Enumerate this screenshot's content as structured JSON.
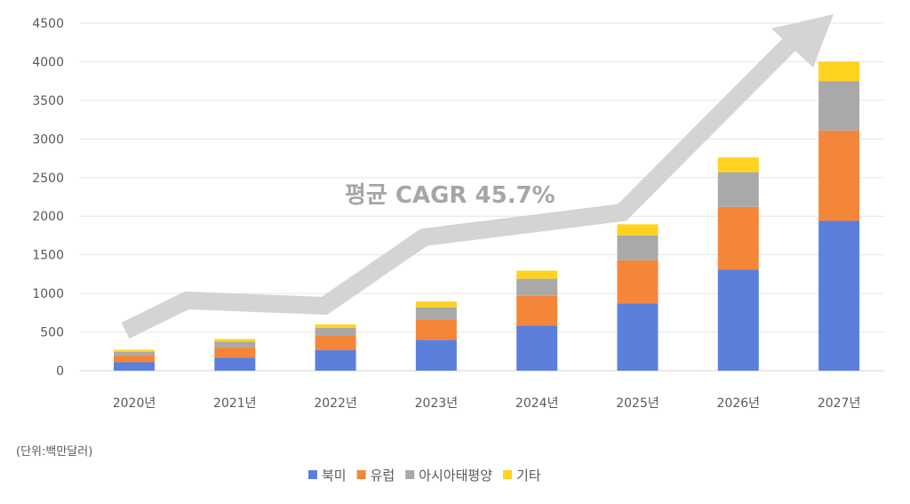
{
  "chart_data": {
    "type": "bar",
    "stacked": true,
    "categories": [
      "2020년",
      "2021년",
      "2022년",
      "2023년",
      "2024년",
      "2025년",
      "2026년",
      "2027년"
    ],
    "series": [
      {
        "name": "북미",
        "color": "#5b7fdb",
        "values": [
          110,
          170,
          265,
          400,
          585,
          870,
          1310,
          1940
        ]
      },
      {
        "name": "유럽",
        "color": "#f4863a",
        "values": [
          90,
          130,
          190,
          265,
          385,
          560,
          810,
          1170
        ]
      },
      {
        "name": "아시아태평양",
        "color": "#a9a9a9",
        "values": [
          45,
          75,
          100,
          155,
          220,
          320,
          450,
          640
        ]
      },
      {
        "name": "기타",
        "color": "#ffd21f",
        "values": [
          25,
          35,
          45,
          75,
          105,
          145,
          190,
          250
        ]
      }
    ],
    "ylim": [
      0,
      4500
    ],
    "yticks": [
      0,
      500,
      1000,
      1500,
      2000,
      2500,
      3000,
      3500,
      4000,
      4500
    ],
    "grid": true,
    "legend_position": "bottom",
    "annotation": "평균 CAGR 45.7%",
    "unit_note": "(단위:백만달러)"
  }
}
